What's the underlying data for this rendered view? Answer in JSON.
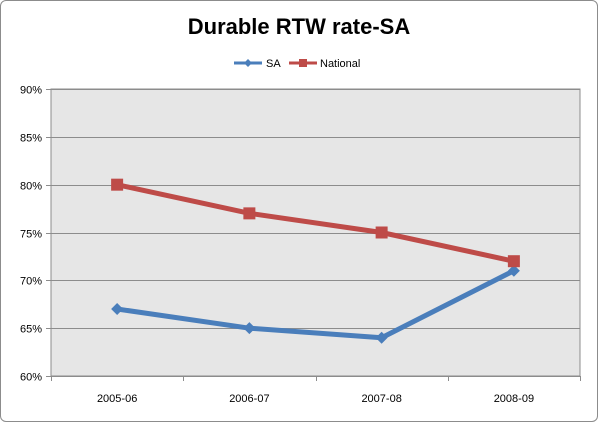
{
  "chart_data": {
    "type": "line",
    "title": "Durable RTW rate-SA",
    "xlabel": "",
    "ylabel": "",
    "categories": [
      "2005-06",
      "2006-07",
      "2007-08",
      "2008-09"
    ],
    "series": [
      {
        "name": "SA",
        "values": [
          67,
          65,
          64,
          71
        ],
        "color": "#4a7ebb",
        "marker": "diamond"
      },
      {
        "name": "National",
        "values": [
          80,
          77,
          75,
          72
        ],
        "color": "#be4b48",
        "marker": "square"
      }
    ],
    "ylim": [
      60,
      90
    ],
    "y_ticks": [
      60,
      65,
      70,
      75,
      80,
      85,
      90
    ],
    "y_tick_labels": [
      "60%",
      "65%",
      "70%",
      "75%",
      "80%",
      "85%",
      "90%"
    ],
    "grid": true,
    "legend_position": "top",
    "plot_background": "#e6e6e6",
    "gridline_color": "#8c8c8c"
  }
}
